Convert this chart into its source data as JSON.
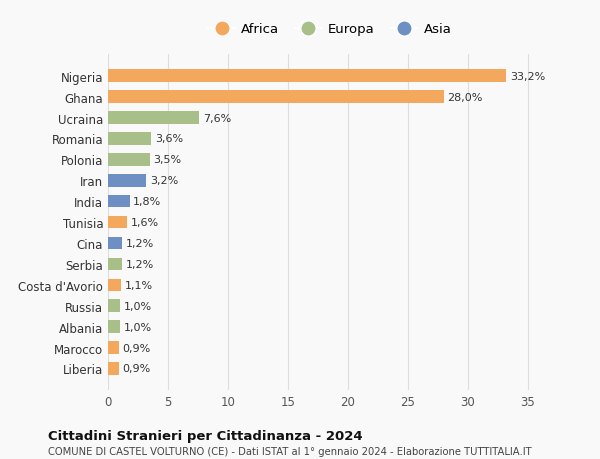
{
  "countries": [
    "Liberia",
    "Marocco",
    "Albania",
    "Russia",
    "Costa d'Avorio",
    "Serbia",
    "Cina",
    "Tunisia",
    "India",
    "Iran",
    "Polonia",
    "Romania",
    "Ucraina",
    "Ghana",
    "Nigeria"
  ],
  "values": [
    0.9,
    0.9,
    1.0,
    1.0,
    1.1,
    1.2,
    1.2,
    1.6,
    1.8,
    3.2,
    3.5,
    3.6,
    7.6,
    28.0,
    33.2
  ],
  "labels": [
    "0,9%",
    "0,9%",
    "1,0%",
    "1,0%",
    "1,1%",
    "1,2%",
    "1,2%",
    "1,6%",
    "1,8%",
    "3,2%",
    "3,5%",
    "3,6%",
    "7,6%",
    "28,0%",
    "33,2%"
  ],
  "colors": [
    "#f4a85d",
    "#f4a85d",
    "#a8bf8a",
    "#a8bf8a",
    "#f4a85d",
    "#a8bf8a",
    "#6d8fc4",
    "#f4a85d",
    "#6d8fc4",
    "#6d8fc4",
    "#a8bf8a",
    "#a8bf8a",
    "#a8bf8a",
    "#f4a85d",
    "#f4a85d"
  ],
  "legend_labels": [
    "Africa",
    "Europa",
    "Asia"
  ],
  "legend_colors": [
    "#f4a85d",
    "#a8bf8a",
    "#6d8fc4"
  ],
  "title": "Cittadini Stranieri per Cittadinanza - 2024",
  "subtitle": "COMUNE DI CASTEL VOLTURNO (CE) - Dati ISTAT al 1° gennaio 2024 - Elaborazione TUTTITALIA.IT",
  "xlim": [
    0,
    37
  ],
  "xticks": [
    0,
    5,
    10,
    15,
    20,
    25,
    30,
    35
  ],
  "bg_color": "#f9f9f9",
  "grid_color": "#dddddd"
}
